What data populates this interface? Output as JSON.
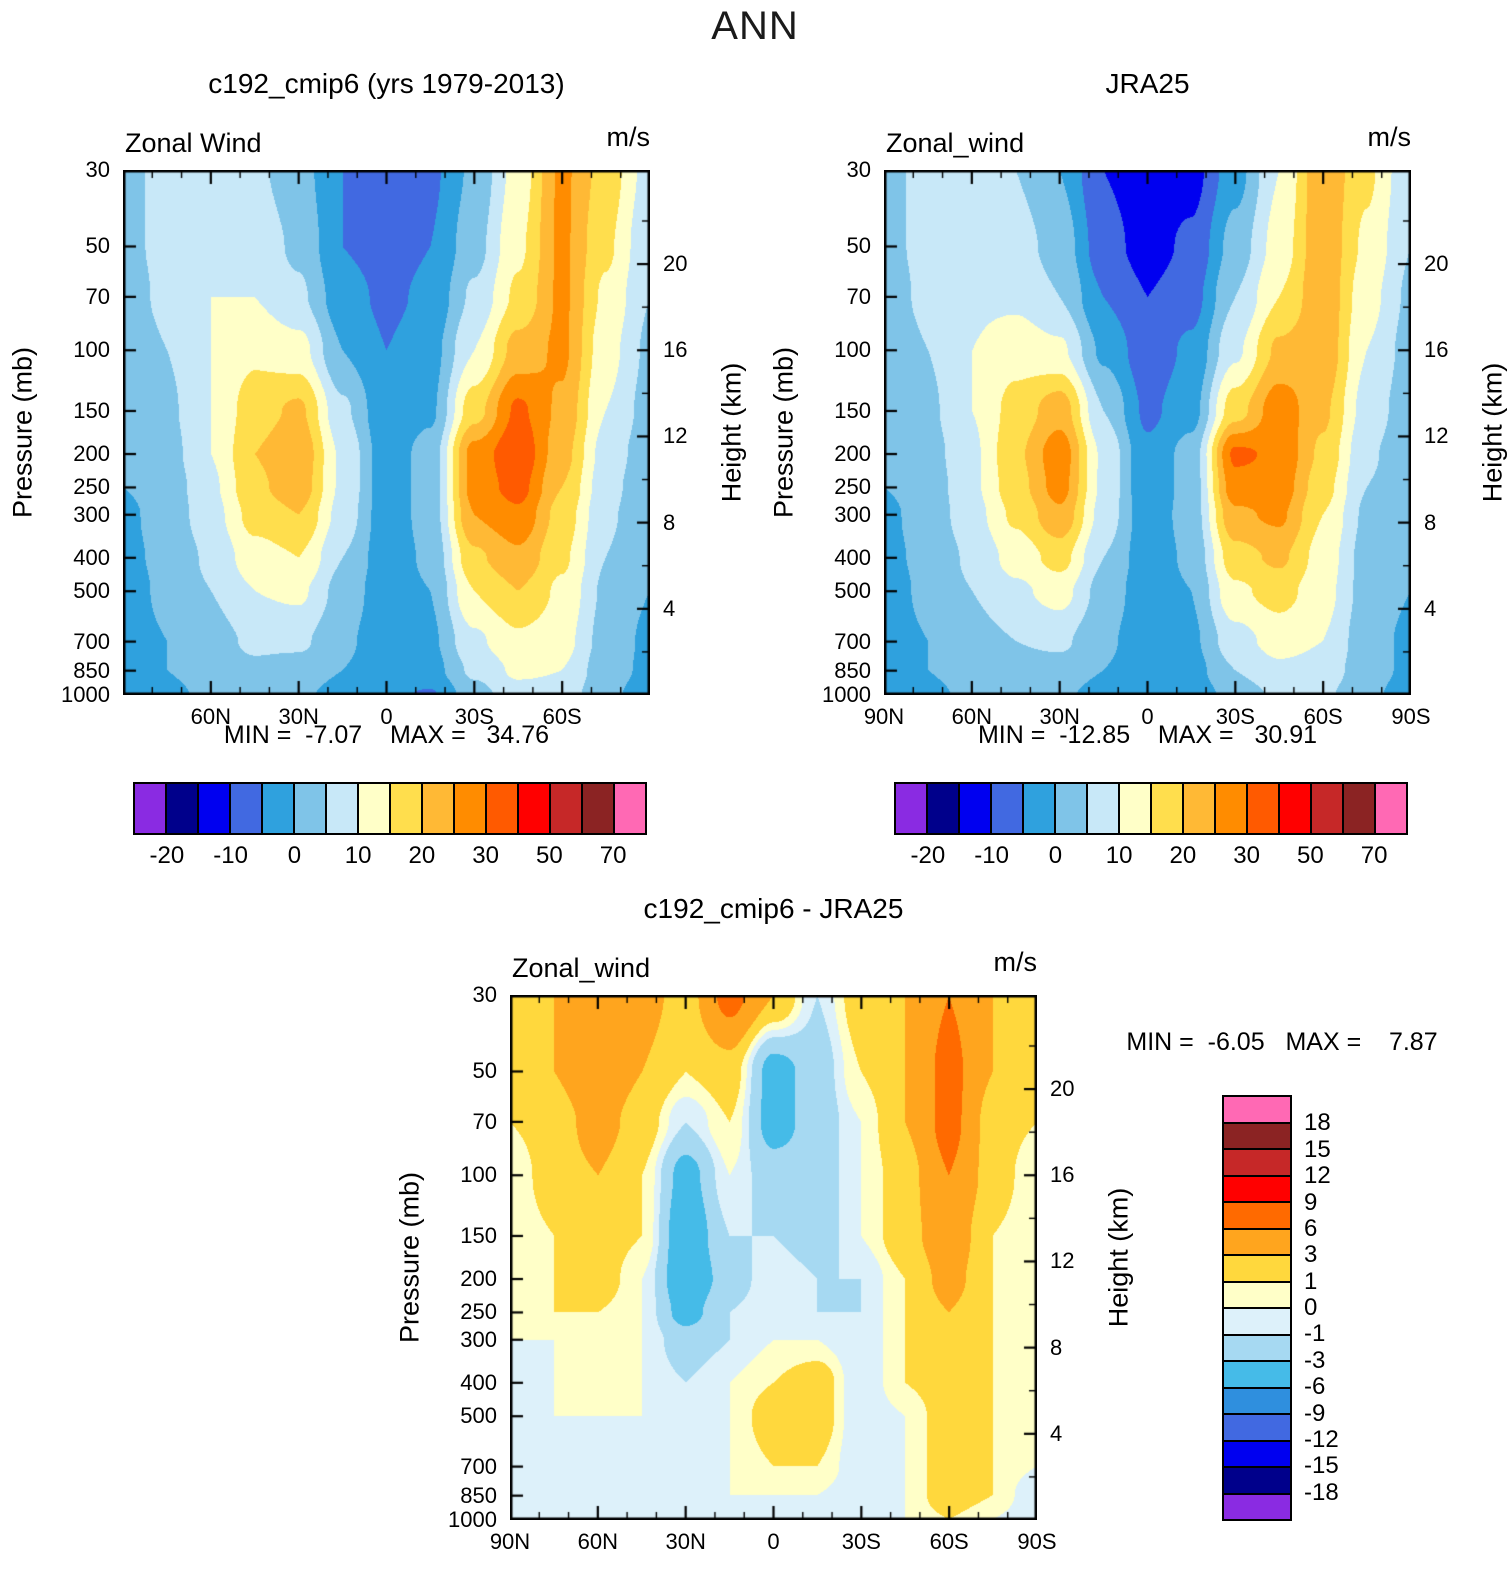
{
  "title": "ANN",
  "chart_data": [
    {
      "type": "heatmap",
      "variant": "filled-contour-latitude-pressure",
      "title": "c192_cmip6 (yrs 1979-2013)",
      "field_label": "Zonal Wind",
      "units_label": "m/s",
      "ylabel_left": "Pressure (mb)",
      "ylabel_right": "Height (km)",
      "stats_text": "MIN =  -7.07    MAX =   34.76",
      "min": -7.07,
      "max": 34.76,
      "lat_grid": [
        90,
        75,
        60,
        45,
        30,
        15,
        0,
        -15,
        -30,
        -45,
        -60,
        -75,
        -90
      ],
      "pressure_grid": [
        30,
        50,
        70,
        100,
        150,
        200,
        250,
        300,
        400,
        500,
        700,
        850,
        1000
      ],
      "values": [
        [
          4,
          6,
          8,
          6,
          2,
          -5,
          -7,
          -6,
          1,
          12,
          26,
          18,
          8
        ],
        [
          4,
          6,
          9,
          8,
          4,
          -5,
          -7,
          -5,
          3,
          14,
          26,
          16,
          6
        ],
        [
          3,
          6,
          10,
          10,
          6,
          -3,
          -6,
          -4,
          6,
          16,
          26,
          14,
          5
        ],
        [
          2,
          5,
          10,
          14,
          12,
          0,
          -5,
          -2,
          10,
          22,
          26,
          12,
          4
        ],
        [
          1,
          4,
          10,
          18,
          21,
          6,
          -4,
          -1,
          18,
          31,
          24,
          10,
          3
        ],
        [
          0,
          3,
          10,
          20,
          24,
          9,
          -3,
          2,
          27,
          34,
          22,
          8,
          2
        ],
        [
          0,
          2,
          9,
          19,
          23,
          9,
          -3,
          2,
          27,
          32,
          20,
          7,
          1
        ],
        [
          -1,
          2,
          8,
          17,
          20,
          8,
          -3,
          2,
          25,
          29,
          18,
          6,
          1
        ],
        [
          -1,
          1,
          6,
          13,
          15,
          5,
          -3,
          1,
          19,
          24,
          16,
          5,
          0
        ],
        [
          -2,
          1,
          5,
          10,
          11,
          3,
          -3,
          0,
          15,
          20,
          14,
          4,
          0
        ],
        [
          -2,
          0,
          3,
          6,
          6,
          1,
          -3,
          -1,
          9,
          14,
          12,
          3,
          -1
        ],
        [
          -2,
          0,
          2,
          4,
          3,
          0,
          -3,
          -2,
          6,
          11,
          10,
          2,
          -1
        ],
        [
          -2,
          -1,
          1,
          2,
          1,
          -2,
          -4,
          -5.5,
          3,
          8,
          8,
          1,
          -2
        ]
      ],
      "level_bounds": [
        -20,
        -15,
        -10,
        -5,
        0,
        5,
        10,
        15,
        20,
        25,
        30,
        40,
        50,
        60,
        70
      ],
      "colors": [
        "#8A2BE2",
        "#00008B",
        "#0000F0",
        "#4169E1",
        "#2FA1DE",
        "#7FC4E8",
        "#C8E8F8",
        "#FFFFC8",
        "#FFDE4D",
        "#FFB935",
        "#FF8C00",
        "#FF5A00",
        "#FF0000",
        "#C62828",
        "#8B2323",
        "#FF69B4"
      ],
      "pressure_tick_labels": [
        "30",
        "50",
        "70",
        "100",
        "150",
        "200",
        "250",
        "300",
        "400",
        "500",
        "700",
        "850",
        "1000"
      ],
      "height_tick_labels": [
        "20",
        "16",
        "12",
        "8",
        "4"
      ],
      "height_tick_km": [
        20,
        16,
        12,
        8,
        4
      ],
      "height_minor_km": [
        22,
        18,
        14,
        10,
        6,
        2
      ],
      "lat_tick_labels": [
        {
          "lat": 60,
          "label": "60N"
        },
        {
          "lat": 30,
          "label": "30N"
        },
        {
          "lat": 0,
          "label": "0"
        },
        {
          "lat": -30,
          "label": "30S"
        },
        {
          "lat": -60,
          "label": "60S"
        }
      ],
      "colorbar": {
        "orientation": "horizontal",
        "labels": [
          "-20",
          "-10",
          "0",
          "10",
          "20",
          "30",
          "50",
          "70"
        ],
        "label_bound_indices": [
          0,
          2,
          4,
          6,
          8,
          10,
          12,
          14
        ]
      }
    },
    {
      "type": "heatmap",
      "variant": "filled-contour-latitude-pressure",
      "title": "JRA25",
      "field_label": "Zonal_wind",
      "units_label": "m/s",
      "ylabel_left": "Pressure (mb)",
      "ylabel_right": "Height (km)",
      "stats_text": "MIN =  -12.85    MAX =   30.91",
      "min": -12.85,
      "max": 30.91,
      "lat_grid": [
        90,
        75,
        60,
        45,
        30,
        15,
        0,
        -15,
        -30,
        -45,
        -60,
        -75,
        -90
      ],
      "pressure_grid": [
        30,
        50,
        70,
        100,
        150,
        200,
        250,
        300,
        400,
        500,
        700,
        850,
        1000
      ],
      "values": [
        [
          4,
          6,
          8,
          5,
          0,
          -10,
          -13,
          -12,
          -2,
          10,
          24,
          16,
          6
        ],
        [
          4,
          6,
          9,
          7,
          3,
          -8,
          -12,
          -9,
          2,
          12,
          24,
          14,
          5
        ],
        [
          3,
          6,
          9,
          9,
          5,
          -5,
          -10,
          -7,
          5,
          15,
          24,
          12,
          4
        ],
        [
          2,
          5,
          10,
          13,
          11,
          -1,
          -8,
          -4,
          9,
          21,
          24,
          10,
          3
        ],
        [
          1,
          4,
          10,
          17,
          23,
          5,
          -6,
          -2,
          18,
          28,
          21,
          8,
          2
        ],
        [
          0,
          3,
          9,
          19,
          28,
          9,
          -4,
          2,
          31,
          29,
          19,
          6,
          1
        ],
        [
          0,
          2,
          9,
          18,
          27,
          9,
          -4,
          2,
          28,
          28,
          17,
          5,
          1
        ],
        [
          -1,
          2,
          8,
          16,
          24,
          8,
          -3,
          2,
          24,
          26,
          15,
          4,
          0
        ],
        [
          -1,
          1,
          6,
          12,
          17,
          5,
          -3,
          1,
          18,
          21,
          13,
          3,
          0
        ],
        [
          -2,
          1,
          5,
          9,
          12,
          3,
          -3,
          0,
          14,
          17,
          12,
          3,
          0
        ],
        [
          -2,
          0,
          3,
          5,
          6,
          1,
          -3,
          -1,
          8,
          12,
          10,
          2,
          -1
        ],
        [
          -2,
          0,
          2,
          3,
          3,
          0,
          -3,
          -2,
          5,
          9,
          8,
          2,
          -1
        ],
        [
          -2,
          -1,
          1,
          1,
          1,
          -2,
          -4,
          -3,
          2,
          6,
          6,
          1,
          -2
        ]
      ],
      "level_bounds": [
        -20,
        -15,
        -10,
        -5,
        0,
        5,
        10,
        15,
        20,
        25,
        30,
        40,
        50,
        60,
        70
      ],
      "colors": [
        "#8A2BE2",
        "#00008B",
        "#0000F0",
        "#4169E1",
        "#2FA1DE",
        "#7FC4E8",
        "#C8E8F8",
        "#FFFFC8",
        "#FFDE4D",
        "#FFB935",
        "#FF8C00",
        "#FF5A00",
        "#FF0000",
        "#C62828",
        "#8B2323",
        "#FF69B4"
      ],
      "pressure_tick_labels": [
        "30",
        "50",
        "70",
        "100",
        "150",
        "200",
        "250",
        "300",
        "400",
        "500",
        "700",
        "850",
        "1000"
      ],
      "height_tick_labels": [
        "20",
        "16",
        "12",
        "8",
        "4"
      ],
      "height_tick_km": [
        20,
        16,
        12,
        8,
        4
      ],
      "height_minor_km": [
        22,
        18,
        14,
        10,
        6,
        2
      ],
      "lat_tick_labels": [
        {
          "lat": 90,
          "label": "90N"
        },
        {
          "lat": 60,
          "label": "60N"
        },
        {
          "lat": 30,
          "label": "30N"
        },
        {
          "lat": 0,
          "label": "0"
        },
        {
          "lat": -30,
          "label": "30S"
        },
        {
          "lat": -60,
          "label": "60S"
        },
        {
          "lat": -90,
          "label": "90S"
        }
      ],
      "colorbar": {
        "orientation": "horizontal",
        "labels": [
          "-20",
          "-10",
          "0",
          "10",
          "20",
          "30",
          "50",
          "70"
        ],
        "label_bound_indices": [
          0,
          2,
          4,
          6,
          8,
          10,
          12,
          14
        ]
      }
    },
    {
      "type": "heatmap",
      "variant": "filled-contour-latitude-pressure-difference",
      "title": "c192_cmip6 - JRA25",
      "field_label": "Zonal_wind",
      "units_label": "m/s",
      "ylabel_left": "Pressure (mb)",
      "ylabel_right": "Height (km)",
      "stats_text": "MIN =  -6.05   MAX =    7.87",
      "min": -6.05,
      "max": 7.87,
      "lat_grid": [
        90,
        75,
        60,
        45,
        30,
        15,
        0,
        -15,
        -30,
        -45,
        -60,
        -75,
        -90
      ],
      "pressure_grid": [
        30,
        50,
        70,
        100,
        150,
        200,
        250,
        300,
        400,
        500,
        700,
        850,
        1000
      ],
      "values": [
        [
          2,
          3,
          5,
          4,
          2,
          7,
          3,
          -1,
          2,
          3,
          6,
          3,
          2
        ],
        [
          1,
          3,
          5,
          3,
          1,
          2,
          -4,
          -2,
          1,
          3,
          7,
          3,
          1
        ],
        [
          1,
          2,
          4,
          2,
          -1,
          1,
          -4,
          -2,
          0,
          3,
          7,
          2,
          1
        ],
        [
          0,
          2,
          3,
          1,
          -4,
          0,
          -2,
          -2,
          0,
          2,
          6,
          2,
          0
        ],
        [
          0,
          1,
          2,
          1,
          -5,
          -1,
          -1,
          -2,
          0,
          2,
          5,
          1,
          0
        ],
        [
          0,
          1,
          2,
          0,
          -5,
          -2,
          0,
          -1,
          -1,
          1,
          4,
          1,
          0
        ],
        [
          0,
          1,
          1,
          0,
          -4,
          -1,
          0,
          -1,
          -1,
          1,
          3,
          1,
          0
        ],
        [
          0,
          0,
          1,
          0,
          -2,
          -1,
          0,
          0,
          -1,
          1,
          3,
          1,
          0
        ],
        [
          0,
          0,
          1,
          0,
          -1,
          0,
          1,
          2,
          -1,
          1,
          2,
          1,
          0
        ],
        [
          0,
          0,
          0,
          0,
          -1,
          0,
          2,
          2,
          -1,
          0,
          2,
          1,
          0
        ],
        [
          0,
          0,
          0,
          0,
          -1,
          0,
          1,
          1,
          -1,
          0,
          2,
          1,
          0
        ],
        [
          0,
          0,
          0,
          0,
          0,
          0,
          0,
          0,
          -1,
          0,
          2,
          1,
          -1
        ],
        [
          0,
          0,
          0,
          0,
          0,
          0,
          0,
          0,
          -1,
          0,
          1,
          0,
          -1
        ]
      ],
      "level_bounds": [
        -18,
        -15,
        -12,
        -9,
        -6,
        -3,
        -1,
        0,
        1,
        3,
        6,
        9,
        12,
        15,
        18
      ],
      "colors": [
        "#8A2BE2",
        "#00008B",
        "#0000F0",
        "#4169E1",
        "#2F8FDE",
        "#45BBE8",
        "#A6D9F2",
        "#DDF1FA",
        "#FFFFC8",
        "#FFD83D",
        "#FFA51E",
        "#FF6A00",
        "#FF0000",
        "#C62828",
        "#8B2323",
        "#FF69B4"
      ],
      "pressure_tick_labels": [
        "30",
        "50",
        "70",
        "100",
        "150",
        "200",
        "250",
        "300",
        "400",
        "500",
        "700",
        "850",
        "1000"
      ],
      "height_tick_labels": [
        "20",
        "16",
        "12",
        "8",
        "4"
      ],
      "height_tick_km": [
        20,
        16,
        12,
        8,
        4
      ],
      "height_minor_km": [
        22,
        18,
        14,
        10,
        6,
        2
      ],
      "lat_tick_labels": [
        {
          "lat": 90,
          "label": "90N"
        },
        {
          "lat": 60,
          "label": "60N"
        },
        {
          "lat": 30,
          "label": "30N"
        },
        {
          "lat": 0,
          "label": "0"
        },
        {
          "lat": -30,
          "label": "30S"
        },
        {
          "lat": -60,
          "label": "60S"
        },
        {
          "lat": -90,
          "label": "90S"
        }
      ],
      "colorbar": {
        "orientation": "vertical",
        "labels": [
          "-18",
          "-15",
          "-12",
          "-9",
          "-6",
          "-3",
          "-1",
          "0",
          "1",
          "3",
          "6",
          "9",
          "12",
          "15",
          "18"
        ],
        "label_bound_indices": [
          0,
          1,
          2,
          3,
          4,
          5,
          6,
          7,
          8,
          9,
          10,
          11,
          12,
          13,
          14
        ]
      }
    }
  ]
}
